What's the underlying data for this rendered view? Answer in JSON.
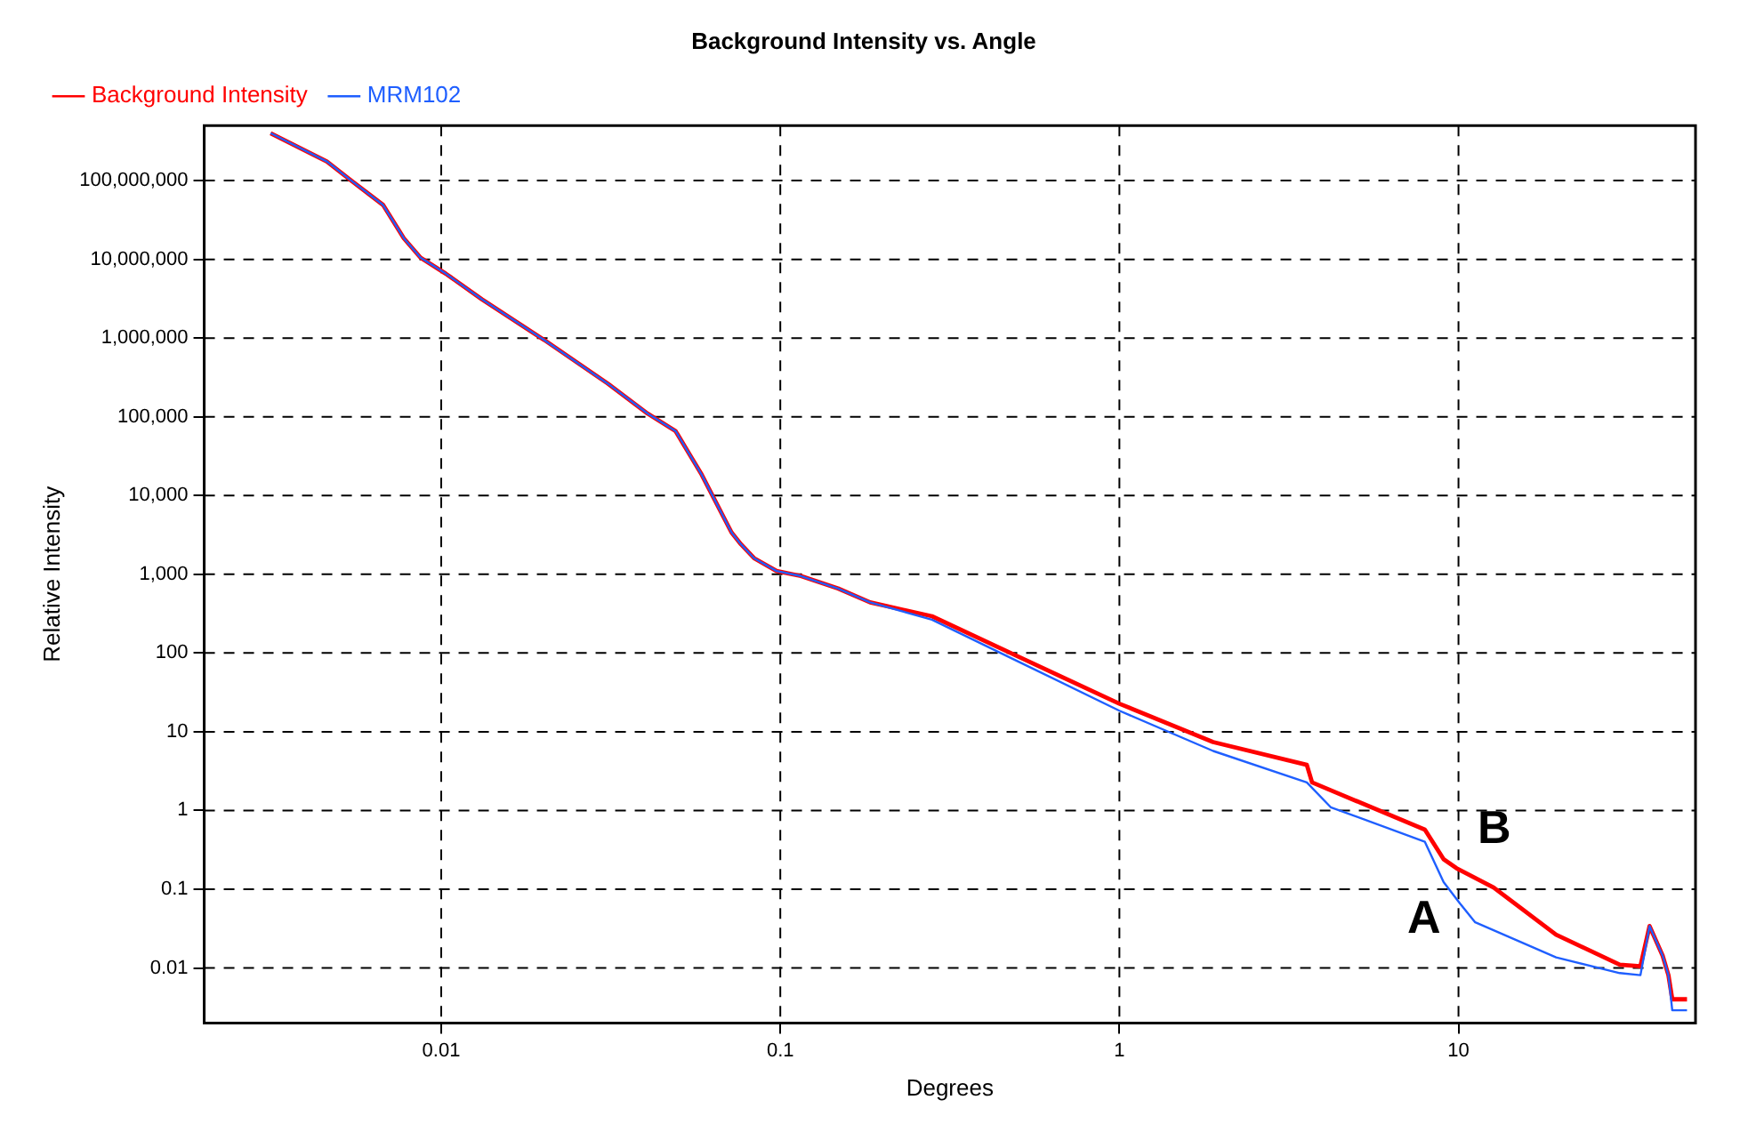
{
  "chart_data": {
    "type": "line",
    "title": "Background Intensity vs. Angle",
    "xlabel": "Degrees",
    "ylabel": "Relative Intensity",
    "log": "xy",
    "grid": true,
    "legend": "top left",
    "marker": "none",
    "line_style": "solid",
    "xlim": [
      0.002,
      50
    ],
    "xticks": [
      0.01,
      0.1,
      1,
      10
    ],
    "ylim": [
      0.002,
      500000000
    ],
    "yticks": [
      0.01,
      0.1,
      1,
      10,
      {
        "value": 100,
        "label": "100"
      },
      {
        "value": 1000,
        "label": "1,000"
      },
      {
        "value": 10000,
        "label": "10,000"
      },
      {
        "value": 100000,
        "label": "100,000"
      },
      {
        "value": 1000000,
        "label": "1,000,000"
      },
      {
        "value": 10000000,
        "label": "10,000,000"
      },
      {
        "value": 100000000,
        "label": "100,000,000"
      }
    ],
    "series": [
      {
        "name": "Background Intensity",
        "color": "#ff0000",
        "x": [
          0.00314,
          0.0046,
          0.00543,
          0.00674,
          0.00776,
          0.00869,
          0.0103,
          0.0132,
          0.0201,
          0.031,
          0.0406,
          0.0491,
          0.0586,
          0.0718,
          0.0766,
          0.0837,
          0.0975,
          0.115,
          0.148,
          0.184,
          0.28,
          0.53,
          1,
          1.89,
          3.57,
          3.7,
          7.96,
          9.04,
          9.86,
          12.7,
          19.4,
          29.9,
          34.4,
          36.6,
          40,
          41.6,
          42.7,
          47.2
        ],
        "values": [
          400000000,
          175000000,
          100000000,
          49000000,
          18500000,
          10500000,
          6600000,
          3100000,
          950000,
          264000,
          110000,
          66000,
          18500,
          3400,
          2400,
          1600,
          1100,
          950,
          660,
          440,
          293,
          81,
          22.7,
          7.4,
          3.8,
          2.27,
          0.57,
          0.24,
          0.185,
          0.105,
          0.0264,
          0.011,
          0.0105,
          0.034,
          0.0143,
          0.0081,
          0.004,
          0.004
        ]
      },
      {
        "name": "MRM102",
        "color": "#1f5fff",
        "x": [
          0.00314,
          0.0046,
          0.00543,
          0.00674,
          0.00776,
          0.00869,
          0.0103,
          0.0132,
          0.0201,
          0.031,
          0.0406,
          0.0491,
          0.0586,
          0.0718,
          0.0766,
          0.0837,
          0.0975,
          0.115,
          0.148,
          0.184,
          0.28,
          0.53,
          1,
          1.89,
          3.57,
          4.2,
          7.96,
          9.04,
          10.1,
          11.2,
          19.4,
          29.9,
          34.4,
          36.6,
          40,
          41.6,
          42.7,
          47.2
        ],
        "values": [
          400000000,
          175000000,
          100000000,
          49000000,
          18500000,
          10500000,
          6600000,
          3100000,
          950000,
          264000,
          110000,
          66000,
          18500,
          3400,
          2400,
          1600,
          1100,
          950,
          660,
          440,
          265,
          70,
          18.5,
          5.7,
          2.27,
          1.1,
          0.4,
          0.123,
          0.066,
          0.038,
          0.0136,
          0.0086,
          0.0081,
          0.034,
          0.0143,
          0.0081,
          0.0029,
          0.0029
        ]
      }
    ],
    "annotations": [
      "A",
      "B"
    ]
  }
}
